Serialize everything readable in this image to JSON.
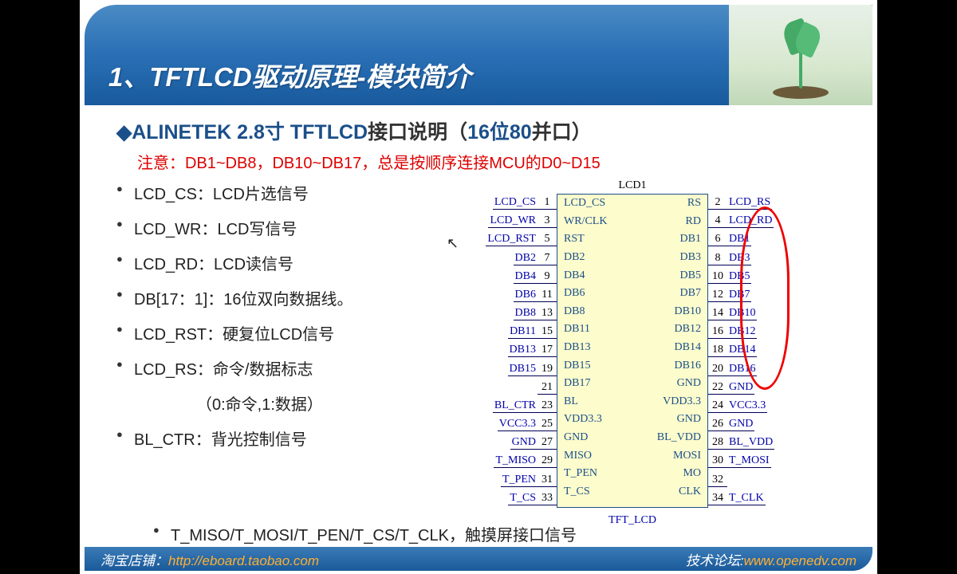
{
  "header": {
    "title": "1、TFTLCD驱动原理-模块简介"
  },
  "subtitle": {
    "diamond": "◆",
    "brand": "ALINETEK 2.8寸 TFTLCD",
    "rest": "接口说明（",
    "bits": "16位80",
    "tail": "并口）"
  },
  "note": "注意：DB1~DB8，DB10~DB17，总是按顺序连接MCU的D0~D15",
  "bullets": [
    "LCD_CS：LCD片选信号",
    "LCD_WR：LCD写信号",
    "LCD_RD：LCD读信号",
    "DB[17：1]：16位双向数据线。",
    "LCD_RST：硬复位LCD信号",
    "LCD_RS：命令/数据标志",
    "（0:命令,1:数据）",
    "BL_CTR：背光控制信号"
  ],
  "last_bullet": "T_MISO/T_MOSI/T_PEN/T_CS/T_CLK，触摸屏接口信号",
  "chip": {
    "top_label": "LCD1",
    "bottom_label": "TFT_LCD",
    "rows": [
      {
        "ln": "LCD_CS",
        "lp": "1",
        "il": "LCD_CS",
        "ir": "RS",
        "rp": "2",
        "rn": "LCD_RS"
      },
      {
        "ln": "LCD_WR",
        "lp": "3",
        "il": "WR/CLK",
        "ir": "RD",
        "rp": "4",
        "rn": "LCD_RD"
      },
      {
        "ln": "LCD_RST",
        "lp": "5",
        "il": "RST",
        "ir": "DB1",
        "rp": "6",
        "rn": "DB1"
      },
      {
        "ln": "DB2",
        "lp": "7",
        "il": "DB2",
        "ir": "DB3",
        "rp": "8",
        "rn": "DB3"
      },
      {
        "ln": "DB4",
        "lp": "9",
        "il": "DB4",
        "ir": "DB5",
        "rp": "10",
        "rn": "DB5"
      },
      {
        "ln": "DB6",
        "lp": "11",
        "il": "DB6",
        "ir": "DB7",
        "rp": "12",
        "rn": "DB7"
      },
      {
        "ln": "DB8",
        "lp": "13",
        "il": "DB8",
        "ir": "DB10",
        "rp": "14",
        "rn": "DB10"
      },
      {
        "ln": "DB11",
        "lp": "15",
        "il": "DB11",
        "ir": "DB12",
        "rp": "16",
        "rn": "DB12"
      },
      {
        "ln": "DB13",
        "lp": "17",
        "il": "DB13",
        "ir": "DB14",
        "rp": "18",
        "rn": "DB14"
      },
      {
        "ln": "DB15",
        "lp": "19",
        "il": "DB15",
        "ir": "DB16",
        "rp": "20",
        "rn": "DB16"
      },
      {
        "ln": "",
        "lp": "21",
        "il": "DB17",
        "ir": "GND",
        "rp": "22",
        "rn": "GND"
      },
      {
        "ln": "BL_CTR",
        "lp": "23",
        "il": "BL",
        "ir": "VDD3.3",
        "rp": "24",
        "rn": "VCC3.3"
      },
      {
        "ln": "VCC3.3",
        "lp": "25",
        "il": "VDD3.3",
        "ir": "GND",
        "rp": "26",
        "rn": "GND"
      },
      {
        "ln": "GND",
        "lp": "27",
        "il": "GND",
        "ir": "BL_VDD",
        "rp": "28",
        "rn": "BL_VDD"
      },
      {
        "ln": "T_MISO",
        "lp": "29",
        "il": "MISO",
        "ir": "MOSI",
        "rp": "30",
        "rn": "T_MOSI"
      },
      {
        "ln": "T_PEN",
        "lp": "31",
        "il": "T_PEN",
        "ir": "MO",
        "rp": "32",
        "rn": ""
      },
      {
        "ln": "T_CS",
        "lp": "33",
        "il": "T_CS",
        "ir": "CLK",
        "rp": "34",
        "rn": "T_CLK"
      }
    ]
  },
  "footer": {
    "shop_label": "淘宝店铺：",
    "shop_url": "http://eboard.taobao.com",
    "forum_label": "技术论坛:",
    "forum_url": "www.openedv.com"
  },
  "colors": {
    "header_grad_top": "#4a8bc4",
    "header_grad_bot": "#185a9d",
    "subtitle": "#1a4f8a",
    "note": "#d00",
    "chip_bg": "#fdfccc",
    "chip_border": "#1a4f8a",
    "pin_label": "#00a",
    "circle": "#e00",
    "footer_orange": "#ffb030"
  }
}
